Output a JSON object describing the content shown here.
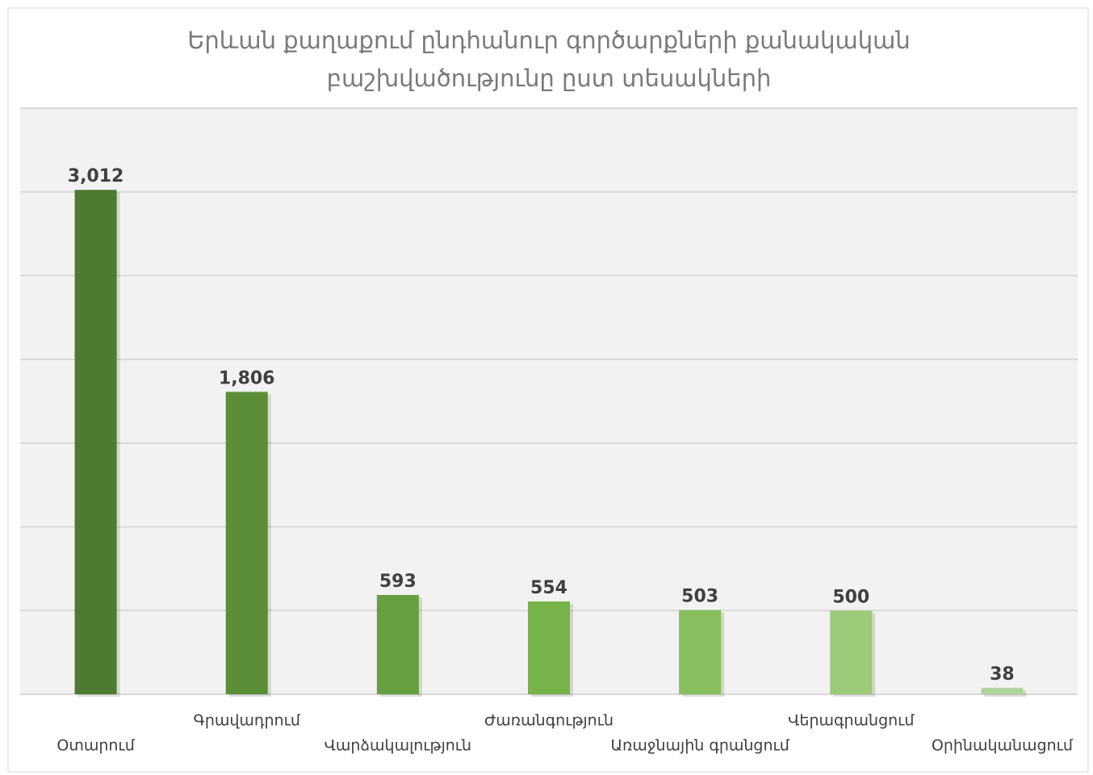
{
  "chart_data": {
    "type": "bar",
    "title": [
      "Երևան քաղաքում ընդհանուր գործարքների քանակական",
      "բաշխվածությունը ըստ տեսակների"
    ],
    "categories": [
      "Օտարում",
      "Գրավադրում",
      "Վարձակալություն",
      "Ժառանգություն",
      "Առաջնային գրանցում",
      "Վերագրանցում",
      "Օրինականացում"
    ],
    "values": [
      3012,
      1806,
      593,
      554,
      503,
      500,
      38
    ],
    "value_labels": [
      "3,012",
      "1,806",
      "593",
      "554",
      "503",
      "500",
      "38"
    ],
    "colors": [
      "#4e7a32",
      "#5a8f38",
      "#66a03f",
      "#76b348",
      "#88bf5e",
      "#9bca78",
      "#aed59a"
    ],
    "ylim": [
      0,
      3500
    ],
    "yticks": [
      0,
      500,
      1000,
      1500,
      2000,
      2500,
      3000,
      3500
    ],
    "grid": true
  }
}
